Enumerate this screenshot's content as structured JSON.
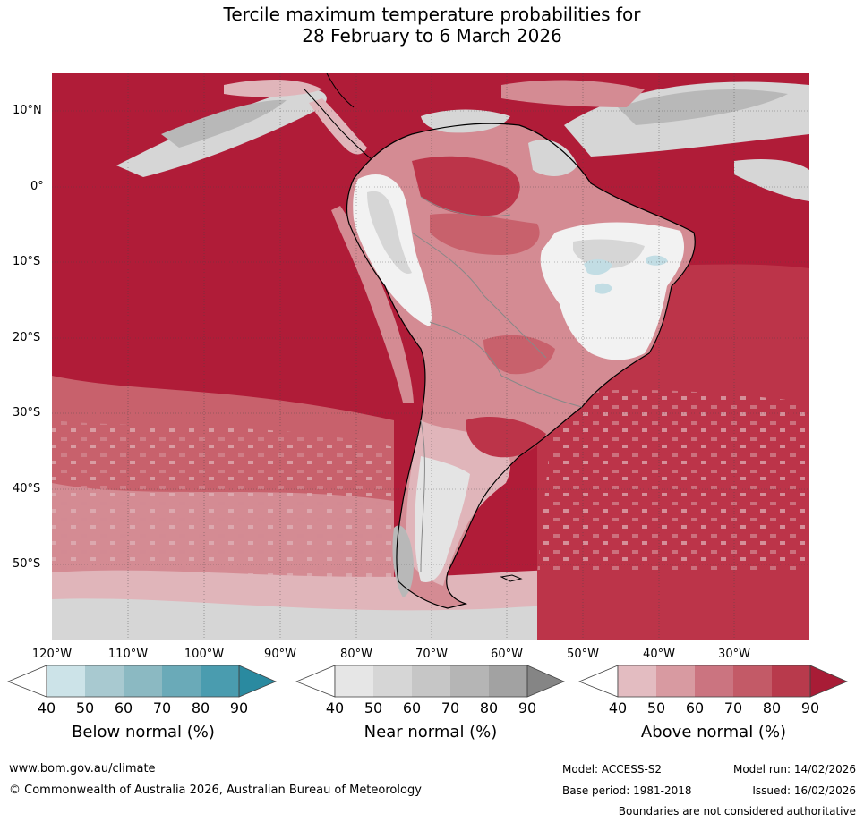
{
  "title": {
    "line1": "Tercile maximum temperature probabilities for",
    "line2": "28 February to 6 March 2026"
  },
  "map": {
    "lat_labels": [
      "10°N",
      "0°",
      "10°S",
      "20°S",
      "30°S",
      "40°S",
      "50°S"
    ],
    "lon_labels": [
      "120°W",
      "110°W",
      "100°W",
      "90°W",
      "80°W",
      "70°W",
      "60°W",
      "50°W",
      "40°W",
      "30°W"
    ],
    "colors": {
      "above_90": "#b01c38",
      "above_80": "#bc3449",
      "above_70": "#c8616c",
      "above_60": "#d48b93",
      "above_50": "#e0b5ba",
      "near_50": "#d6d6d6",
      "near_70": "#b8b8b8",
      "near_90": "#8c8c8c",
      "below_50": "#c2dde4",
      "below_80": "#6aaab8",
      "land_white": "#f2f2f2"
    }
  },
  "colorbars": [
    {
      "title": "Below normal (%)",
      "ticks": [
        "40",
        "50",
        "60",
        "70",
        "80",
        "90"
      ],
      "colors": [
        "#ffffff",
        "#cce3e8",
        "#a8c9d0",
        "#8bb9c2",
        "#6aaab8",
        "#4a9caf",
        "#2a8aa0"
      ]
    },
    {
      "title": "Near normal (%)",
      "ticks": [
        "40",
        "50",
        "60",
        "70",
        "80",
        "90"
      ],
      "colors": [
        "#ffffff",
        "#e6e6e6",
        "#d6d6d6",
        "#c6c6c6",
        "#b5b5b5",
        "#a2a2a2",
        "#858585"
      ]
    },
    {
      "title": "Above normal (%)",
      "ticks": [
        "40",
        "50",
        "60",
        "70",
        "80",
        "90"
      ],
      "colors": [
        "#ffffff",
        "#e3bcc1",
        "#d89aa1",
        "#cb7480",
        "#c35a67",
        "#b83a4c",
        "#a81c36"
      ]
    }
  ],
  "footer": {
    "website": "www.bom.gov.au/climate",
    "copyright": "© Commonwealth of Australia 2026, Australian Bureau of Meteorology",
    "model": "Model: ACCESS-S2",
    "model_run": "Model run: 14/02/2026",
    "base_period": "Base period: 1981-2018",
    "issued": "Issued: 16/02/2026",
    "disclaimer": "Boundaries are not considered authoritative"
  }
}
